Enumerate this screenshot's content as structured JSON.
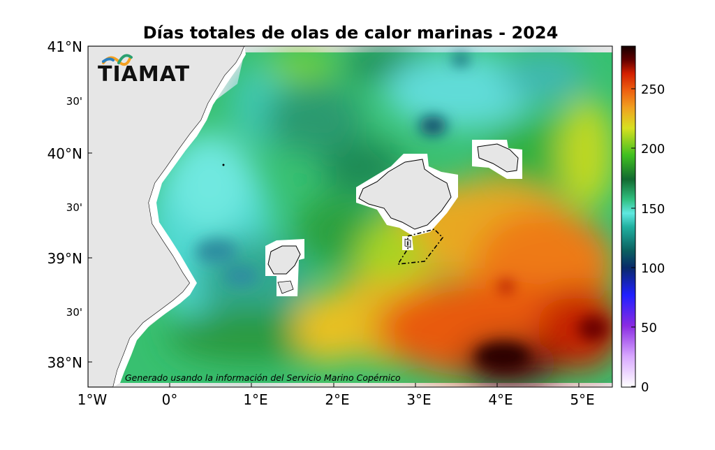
{
  "title": "Días totales de olas de calor marinas - 2024",
  "logo": {
    "text": "TIAMAT"
  },
  "credit": "Generado usando la información del Servicio Marino Copérnico",
  "map": {
    "lon_range": [
      -1,
      5.4
    ],
    "lat_range": [
      37.6,
      41
    ],
    "x_ticks": [
      "1°W",
      "0°",
      "1°E",
      "2°E",
      "3°E",
      "4°E",
      "5°E"
    ],
    "y_ticks_major": [
      "41°N",
      "40°N",
      "39°N",
      "38°N"
    ],
    "y_ticks_minor": [
      "30'",
      "30'",
      "30'"
    ],
    "features": [
      "Mallorca",
      "Menorca",
      "Ibiza",
      "Formentera",
      "Cabrera marine reserve boundary (dashed)"
    ]
  },
  "colorbar": {
    "min": 0,
    "max": 285,
    "ticks": [
      "0",
      "50",
      "100",
      "150",
      "200",
      "250"
    ]
  },
  "colors": {
    "land": "#e6e6e6",
    "scale": [
      "#ffffff",
      "#d8a8ff",
      "#8a2be2",
      "#2020ff",
      "#0a2a6a",
      "#0b6060",
      "#20b0a0",
      "#60e8e0",
      "#30c080",
      "#22a040",
      "#40c020",
      "#d8e020",
      "#f0a020",
      "#ee6010",
      "#d21f00",
      "#600000",
      "#150000"
    ]
  }
}
